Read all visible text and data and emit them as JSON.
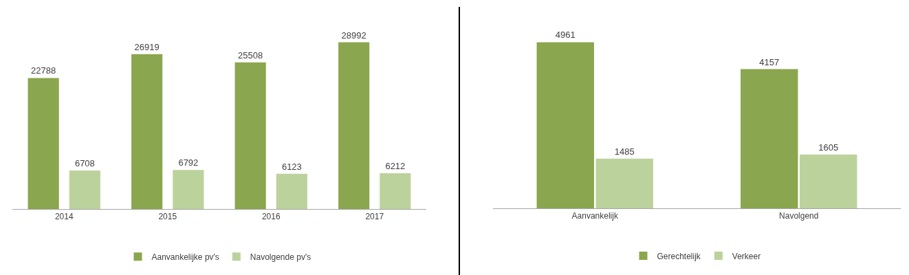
{
  "chart_data": [
    {
      "type": "bar",
      "categories": [
        "2014",
        "2015",
        "2016",
        "2017"
      ],
      "series": [
        {
          "name": "Aanvankelijke pv's",
          "color": "#8aa64e",
          "values": [
            22788,
            26919,
            25508,
            28992
          ]
        },
        {
          "name": "Navolgende pv's",
          "color": "#bcd29c",
          "values": [
            6708,
            6792,
            6123,
            6212
          ]
        }
      ],
      "data_labels": true,
      "tick_labels": "x",
      "legend": "bottom",
      "grid": false
    },
    {
      "type": "bar",
      "categories": [
        "Aanvankelijk",
        "Navolgend"
      ],
      "series": [
        {
          "name": "Gerechtelijk",
          "color": "#8aa64e",
          "values": [
            4961,
            4157
          ]
        },
        {
          "name": "Verkeer",
          "color": "#bcd29c",
          "values": [
            1485,
            1605
          ]
        }
      ],
      "data_labels": true,
      "tick_labels": "x",
      "legend": "bottom",
      "grid": false
    }
  ]
}
